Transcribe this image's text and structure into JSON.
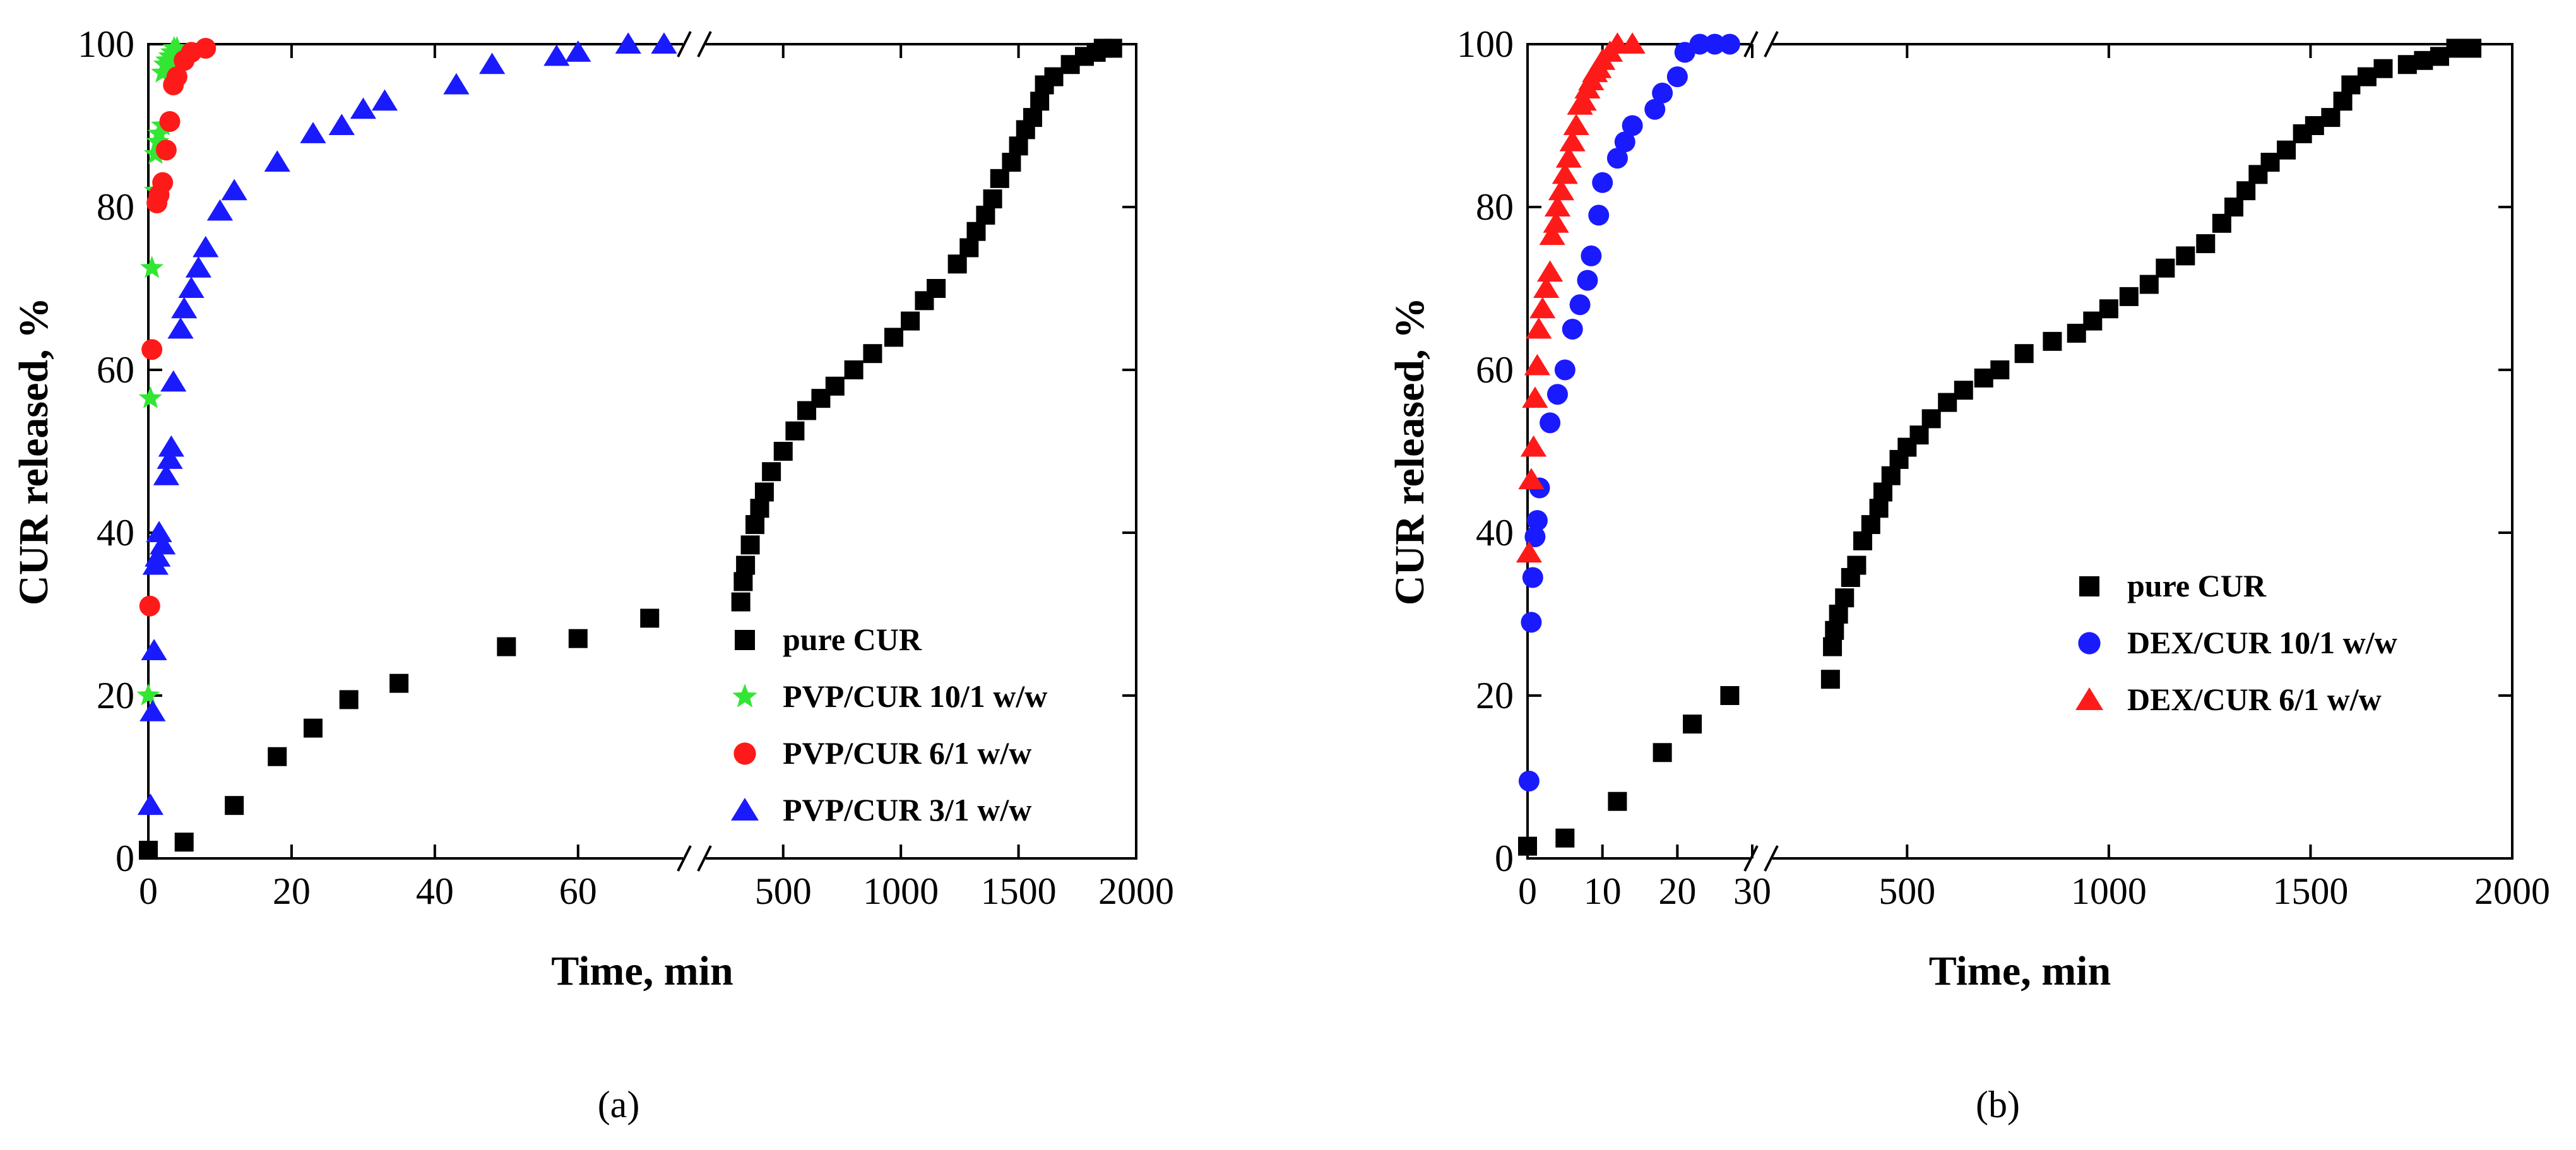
{
  "chart_data": [
    {
      "type": "scatter",
      "panel": "(a)",
      "xlabel": "Time, min",
      "ylabel": "CUR released, %",
      "ylim": [
        0,
        100
      ],
      "yticks": [
        "0",
        "20",
        "40",
        "60",
        "80",
        "100"
      ],
      "x_break": true,
      "xlim_segments": [
        [
          0,
          75
        ],
        [
          160,
          2000
        ]
      ],
      "xticks_left": [
        "0",
        "20",
        "40",
        "60"
      ],
      "xticks_right": [
        "500",
        "1000",
        "1500",
        "2000"
      ],
      "legend_position": "bottom-right",
      "series": [
        {
          "name": "pure CUR",
          "marker": "square",
          "color": "#000000",
          "points": [
            [
              0,
              1
            ],
            [
              5,
              2
            ],
            [
              12,
              6.5
            ],
            [
              18,
              12.5
            ],
            [
              23,
              16
            ],
            [
              28,
              19.5
            ],
            [
              35,
              21.5
            ],
            [
              50,
              26
            ],
            [
              60,
              27
            ],
            [
              70,
              29.5
            ],
            [
              320,
              31.5
            ],
            [
              330,
              34
            ],
            [
              340,
              36
            ],
            [
              360,
              38.5
            ],
            [
              380,
              41
            ],
            [
              400,
              43
            ],
            [
              420,
              45
            ],
            [
              450,
              47.5
            ],
            [
              500,
              50
            ],
            [
              550,
              52.5
            ],
            [
              600,
              55
            ],
            [
              660,
              56.5
            ],
            [
              720,
              58
            ],
            [
              800,
              60
            ],
            [
              880,
              62
            ],
            [
              970,
              64
            ],
            [
              1040,
              66
            ],
            [
              1100,
              68.5
            ],
            [
              1150,
              70
            ],
            [
              1240,
              73
            ],
            [
              1290,
              75
            ],
            [
              1320,
              77
            ],
            [
              1360,
              79
            ],
            [
              1390,
              81
            ],
            [
              1420,
              83.5
            ],
            [
              1470,
              85.5
            ],
            [
              1500,
              87.5
            ],
            [
              1530,
              89.5
            ],
            [
              1560,
              91
            ],
            [
              1590,
              93
            ],
            [
              1610,
              95
            ],
            [
              1650,
              96
            ],
            [
              1720,
              97.5
            ],
            [
              1780,
              98.5
            ],
            [
              1830,
              99
            ],
            [
              1860,
              99.5
            ],
            [
              1900,
              99.5
            ]
          ]
        },
        {
          "name": "PVP/CUR 10/1 w/w",
          "marker": "star",
          "color": "#33e633",
          "points": [
            [
              0,
              20
            ],
            [
              0.3,
              56.5
            ],
            [
              0.5,
              72.5
            ],
            [
              1,
              82
            ],
            [
              1,
              86.5
            ],
            [
              1.3,
              88
            ],
            [
              1.5,
              89
            ],
            [
              2,
              90
            ],
            [
              2,
              96.5
            ],
            [
              2.3,
              97.5
            ],
            [
              2.6,
              98
            ],
            [
              3,
              98.5
            ],
            [
              3.3,
              99
            ],
            [
              3.6,
              99.5
            ],
            [
              4,
              99.5
            ],
            [
              3,
              97
            ],
            [
              2.6,
              97.5
            ]
          ]
        },
        {
          "name": "PVP/CUR 6/1 w/w",
          "marker": "circle",
          "color": "#ff1a1a",
          "points": [
            [
              0.2,
              31
            ],
            [
              0.5,
              62.5
            ],
            [
              1.2,
              80.5
            ],
            [
              1.5,
              81.5
            ],
            [
              2,
              83
            ],
            [
              2.5,
              87
            ],
            [
              3,
              90.5
            ],
            [
              3.5,
              95
            ],
            [
              4,
              96
            ],
            [
              5,
              98
            ],
            [
              6,
              99
            ],
            [
              8,
              99.5
            ]
          ]
        },
        {
          "name": "PVP/CUR 3/1 w/w",
          "marker": "triangle",
          "color": "#1a1aff",
          "points": [
            [
              0.3,
              6.5
            ],
            [
              0.6,
              18
            ],
            [
              0.8,
              25.5
            ],
            [
              1,
              36
            ],
            [
              1.3,
              37
            ],
            [
              1.5,
              40
            ],
            [
              2,
              38.5
            ],
            [
              2.5,
              47
            ],
            [
              3,
              49
            ],
            [
              3.2,
              50.5
            ],
            [
              3.5,
              58.5
            ],
            [
              4.5,
              65
            ],
            [
              5,
              67.5
            ],
            [
              6,
              70
            ],
            [
              7,
              72.5
            ],
            [
              8,
              75
            ],
            [
              10,
              79.5
            ],
            [
              12,
              82
            ],
            [
              18,
              85.5
            ],
            [
              23,
              89
            ],
            [
              27,
              90
            ],
            [
              30,
              92
            ],
            [
              33,
              93
            ],
            [
              43,
              95
            ],
            [
              48,
              97.5
            ],
            [
              57,
              98.5
            ],
            [
              60,
              99
            ],
            [
              67,
              100
            ],
            [
              72,
              100
            ]
          ]
        }
      ]
    },
    {
      "type": "scatter",
      "panel": "(b)",
      "xlabel": "Time, min",
      "ylabel": "CUR released, %",
      "ylim": [
        0,
        100
      ],
      "yticks": [
        "0",
        "20",
        "40",
        "60",
        "80",
        "100"
      ],
      "x_break": true,
      "xlim_segments": [
        [
          0,
          30
        ],
        [
          160,
          2000
        ]
      ],
      "xticks_left": [
        "0",
        "10",
        "20",
        "30"
      ],
      "xticks_right": [
        "500",
        "1000",
        "1500",
        "2000"
      ],
      "legend_position": "center-right",
      "series": [
        {
          "name": "pure CUR",
          "marker": "square",
          "color": "#000000",
          "points": [
            [
              0,
              1.5
            ],
            [
              5,
              2.5
            ],
            [
              12,
              7
            ],
            [
              18,
              13
            ],
            [
              22,
              16.5
            ],
            [
              27,
              20
            ],
            [
              310,
              22
            ],
            [
              315,
              26
            ],
            [
              320,
              28
            ],
            [
              330,
              30
            ],
            [
              345,
              32
            ],
            [
              360,
              34.5
            ],
            [
              375,
              36
            ],
            [
              390,
              39
            ],
            [
              410,
              41
            ],
            [
              430,
              43
            ],
            [
              440,
              45
            ],
            [
              460,
              47
            ],
            [
              480,
              49
            ],
            [
              500,
              50.5
            ],
            [
              530,
              52
            ],
            [
              560,
              54
            ],
            [
              600,
              56
            ],
            [
              640,
              57.5
            ],
            [
              690,
              59
            ],
            [
              730,
              60
            ],
            [
              790,
              62
            ],
            [
              860,
              63.5
            ],
            [
              920,
              64.5
            ],
            [
              960,
              66
            ],
            [
              1000,
              67.5
            ],
            [
              1050,
              69
            ],
            [
              1100,
              70.5
            ],
            [
              1140,
              72.5
            ],
            [
              1190,
              74
            ],
            [
              1240,
              75.5
            ],
            [
              1280,
              78
            ],
            [
              1310,
              80
            ],
            [
              1340,
              82
            ],
            [
              1370,
              84
            ],
            [
              1400,
              85.5
            ],
            [
              1440,
              87
            ],
            [
              1480,
              89
            ],
            [
              1510,
              90
            ],
            [
              1550,
              91
            ],
            [
              1580,
              93
            ],
            [
              1600,
              95
            ],
            [
              1640,
              96
            ],
            [
              1680,
              97
            ],
            [
              1740,
              97.5
            ],
            [
              1780,
              98
            ],
            [
              1820,
              98.5
            ],
            [
              1860,
              99.5
            ],
            [
              1900,
              99.5
            ]
          ]
        },
        {
          "name": "DEX/CUR 10/1 w/w",
          "marker": "circle",
          "color": "#1a1aff",
          "points": [
            [
              0.2,
              9.5
            ],
            [
              0.5,
              29
            ],
            [
              0.7,
              34.5
            ],
            [
              1,
              39.5
            ],
            [
              1.3,
              41.5
            ],
            [
              1.6,
              45.5
            ],
            [
              3,
              53.5
            ],
            [
              4,
              57
            ],
            [
              5,
              60
            ],
            [
              6,
              65
            ],
            [
              7,
              68
            ],
            [
              8,
              71
            ],
            [
              8.5,
              74
            ],
            [
              9.5,
              79
            ],
            [
              10,
              83
            ],
            [
              12,
              86
            ],
            [
              13,
              88
            ],
            [
              14,
              90
            ],
            [
              17,
              92
            ],
            [
              18,
              94
            ],
            [
              20,
              96
            ],
            [
              21,
              99
            ],
            [
              23,
              100
            ],
            [
              25,
              100
            ],
            [
              27,
              100
            ]
          ]
        },
        {
          "name": "DEX/CUR 6/1 w/w",
          "marker": "triangle",
          "color": "#ff1a1a",
          "points": [
            [
              0.2,
              37.5
            ],
            [
              0.5,
              46.5
            ],
            [
              0.8,
              50.5
            ],
            [
              1,
              56.5
            ],
            [
              1.3,
              60.5
            ],
            [
              1.5,
              65
            ],
            [
              2,
              67.5
            ],
            [
              2.5,
              70
            ],
            [
              3,
              72
            ],
            [
              3.3,
              76.5
            ],
            [
              3.8,
              78
            ],
            [
              4,
              80
            ],
            [
              4.5,
              82
            ],
            [
              5,
              84
            ],
            [
              5.5,
              86
            ],
            [
              6,
              88
            ],
            [
              6.5,
              90
            ],
            [
              7,
              92.5
            ],
            [
              7.5,
              93
            ],
            [
              8,
              94.5
            ],
            [
              8.5,
              95.5
            ],
            [
              9,
              96.5
            ],
            [
              9.5,
              97
            ],
            [
              10,
              98
            ],
            [
              11,
              99
            ],
            [
              12,
              100
            ],
            [
              14,
              100
            ]
          ]
        }
      ]
    }
  ]
}
